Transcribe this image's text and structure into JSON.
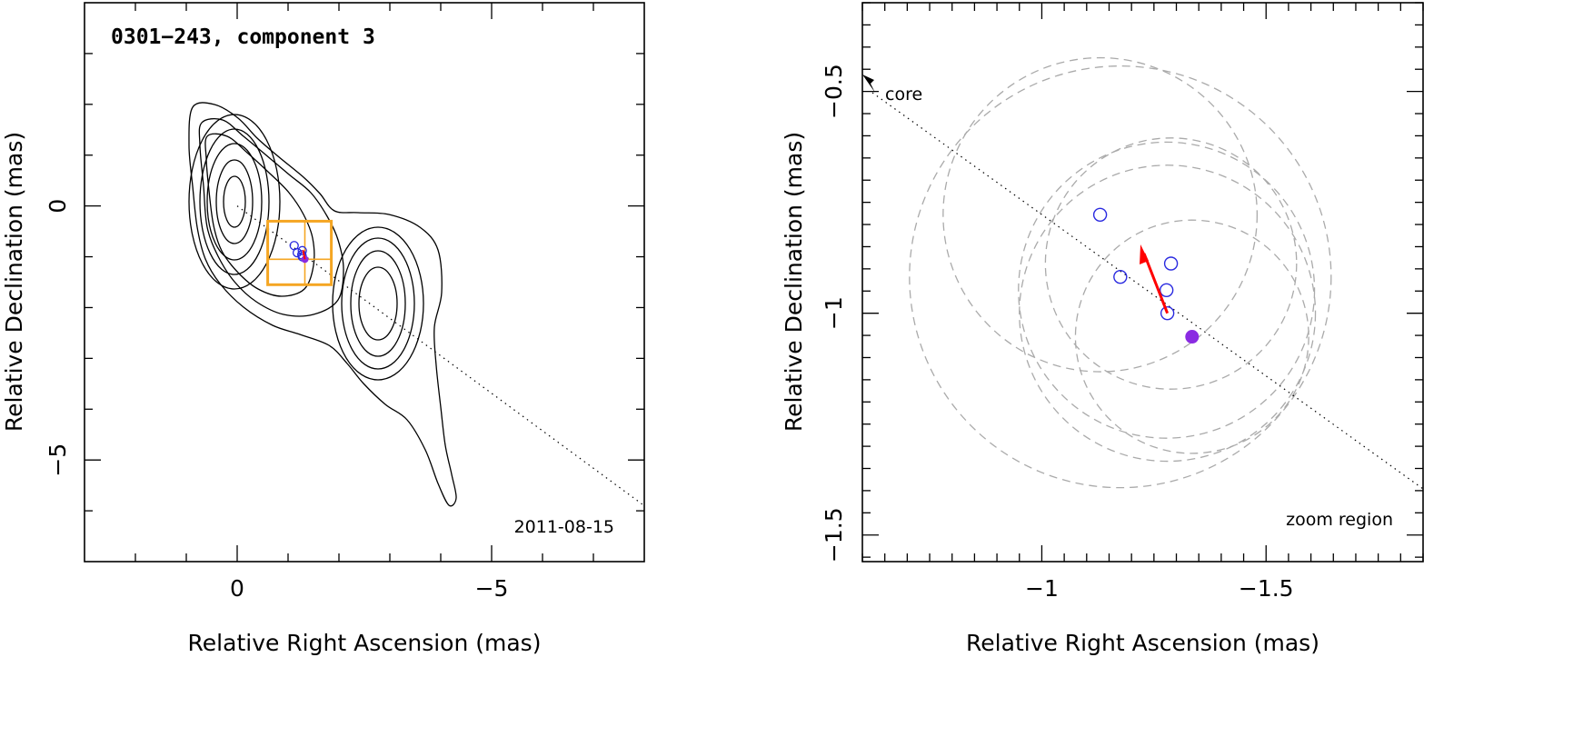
{
  "chart_data": [
    {
      "type": "scatter",
      "title": "0301−243, component 3",
      "date_label": "2011-08-15",
      "xlabel": "Relative Right Ascension (mas)",
      "ylabel": "Relative Declination (mas)",
      "xlim": [
        3,
        -8
      ],
      "ylim": [
        -7,
        4
      ],
      "x_ticks": [
        "0",
        "−5"
      ],
      "y_ticks": [
        "0",
        "−5"
      ],
      "grid": false,
      "contour_levels": 6,
      "contour_color": "#000000",
      "zoom_box_color": "#f5a623",
      "epoch_marker_color": "#2a2ae0",
      "current_marker_color": "#8a2be2",
      "arrow_color": "#ff0000",
      "jet_axis": {
        "x": [
          0,
          -8
        ],
        "y": [
          0,
          -5.9
        ]
      },
      "zoom_box": {
        "x": [
          -0.6,
          -1.85
        ],
        "y": [
          -0.3,
          -1.55
        ]
      },
      "epochs": [
        {
          "x": -1.12,
          "y": -0.78
        },
        {
          "x": -1.18,
          "y": -0.92
        },
        {
          "x": -1.27,
          "y": -0.96
        },
        {
          "x": -1.28,
          "y": -0.88
        },
        {
          "x": -1.28,
          "y": -1.0
        }
      ],
      "current": {
        "x": -1.33,
        "y": -1.05
      }
    },
    {
      "type": "scatter",
      "xlabel": "Relative Right Ascension (mas)",
      "ylabel": "Relative Declination (mas)",
      "xlim": [
        -0.6,
        -1.85
      ],
      "ylim": [
        -1.56,
        -0.3
      ],
      "x_ticks": [
        "−1",
        "−1.5"
      ],
      "y_ticks": [
        "−0.5",
        "−1",
        "−1.5"
      ],
      "grid": false,
      "core_label": "core",
      "zoom_label": "zoom region",
      "component_size_color": "#aaaaaa",
      "epoch_marker_color": "#2a2ae0",
      "current_marker_color": "#8a2be2",
      "arrow_color": "#ff0000",
      "epochs": [
        {
          "x": -1.13,
          "y": -0.778,
          "r": 0.35
        },
        {
          "x": -1.175,
          "y": -0.918,
          "r": 0.47
        },
        {
          "x": -1.278,
          "y": -0.948,
          "r": 0.33
        },
        {
          "x": -1.288,
          "y": -0.888,
          "r": 0.28
        },
        {
          "x": -1.28,
          "y": -1.0,
          "r": 0.33
        }
      ],
      "current": {
        "x": -1.335,
        "y": -1.053,
        "r": 0.26
      },
      "motion_arrow": {
        "from": [
          -1.28,
          -1.0
        ],
        "to": [
          -1.22,
          -0.845
        ]
      },
      "core_direction_arrow": {
        "from": [
          -0.63,
          -0.33
        ],
        "to": [
          -0.6,
          -0.3
        ]
      }
    }
  ]
}
